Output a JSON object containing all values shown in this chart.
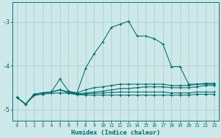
{
  "xlabel": "Humidex (Indice chaleur)",
  "xlim": [
    -0.5,
    23.5
  ],
  "ylim": [
    -5.25,
    -2.55
  ],
  "background_color": "#cce8e8",
  "grid_color": "#aad0d0",
  "line_color": "#006b6b",
  "yticks": [
    -5,
    -4,
    -3
  ],
  "xticks": [
    0,
    1,
    2,
    3,
    4,
    5,
    6,
    7,
    8,
    9,
    10,
    11,
    12,
    13,
    14,
    15,
    16,
    17,
    18,
    19,
    20,
    21,
    22,
    23
  ],
  "lines": [
    {
      "x": [
        0,
        1,
        2,
        3,
        4,
        5,
        6,
        7,
        8,
        9,
        10,
        11,
        12,
        13,
        14,
        15,
        16,
        17,
        18,
        19,
        20,
        21,
        22,
        23
      ],
      "y": [
        -4.72,
        -4.88,
        -4.65,
        -4.62,
        -4.6,
        -4.3,
        -4.58,
        -4.62,
        -4.05,
        -3.72,
        -3.45,
        -3.12,
        -3.05,
        -2.98,
        -3.32,
        -3.32,
        -3.38,
        -3.5,
        -4.02,
        -4.02,
        -4.42,
        -4.42,
        -4.42,
        -4.42
      ]
    },
    {
      "x": [
        0,
        1,
        2,
        3,
        4,
        5,
        6,
        7,
        8,
        9,
        10,
        11,
        12,
        13,
        14,
        15,
        16,
        17,
        18,
        19,
        20,
        21,
        22,
        23
      ],
      "y": [
        -4.72,
        -4.88,
        -4.65,
        -4.62,
        -4.6,
        -4.55,
        -4.6,
        -4.62,
        -4.55,
        -4.5,
        -4.48,
        -4.45,
        -4.42,
        -4.42,
        -4.42,
        -4.42,
        -4.42,
        -4.42,
        -4.45,
        -4.45,
        -4.45,
        -4.42,
        -4.4,
        -4.4
      ]
    },
    {
      "x": [
        0,
        1,
        2,
        3,
        4,
        5,
        6,
        7,
        8,
        9,
        10,
        11,
        12,
        13,
        14,
        15,
        16,
        17,
        18,
        19,
        20,
        21,
        22,
        23
      ],
      "y": [
        -4.72,
        -4.88,
        -4.65,
        -4.62,
        -4.6,
        -4.55,
        -4.6,
        -4.65,
        -4.62,
        -4.6,
        -4.58,
        -4.55,
        -4.52,
        -4.52,
        -4.5,
        -4.48,
        -4.48,
        -4.48,
        -4.5,
        -4.5,
        -4.5,
        -4.48,
        -4.45,
        -4.45
      ]
    },
    {
      "x": [
        0,
        1,
        2,
        3,
        4,
        5,
        6,
        7,
        8,
        9,
        10,
        11,
        12,
        13,
        14,
        15,
        16,
        17,
        18,
        19,
        20,
        21,
        22,
        23
      ],
      "y": [
        -4.72,
        -4.88,
        -4.65,
        -4.62,
        -4.6,
        -4.55,
        -4.62,
        -4.65,
        -4.64,
        -4.63,
        -4.62,
        -4.61,
        -4.6,
        -4.6,
        -4.6,
        -4.6,
        -4.6,
        -4.6,
        -4.62,
        -4.62,
        -4.62,
        -4.6,
        -4.6,
        -4.6
      ]
    },
    {
      "x": [
        0,
        1,
        2,
        3,
        4,
        5,
        6,
        7,
        8,
        9,
        10,
        11,
        12,
        13,
        14,
        15,
        16,
        17,
        18,
        19,
        20,
        21,
        22,
        23
      ],
      "y": [
        -4.72,
        -4.88,
        -4.68,
        -4.65,
        -4.63,
        -4.62,
        -4.63,
        -4.66,
        -4.67,
        -4.67,
        -4.67,
        -4.67,
        -4.67,
        -4.67,
        -4.67,
        -4.67,
        -4.67,
        -4.67,
        -4.67,
        -4.67,
        -4.67,
        -4.65,
        -4.65,
        -4.65
      ]
    }
  ]
}
